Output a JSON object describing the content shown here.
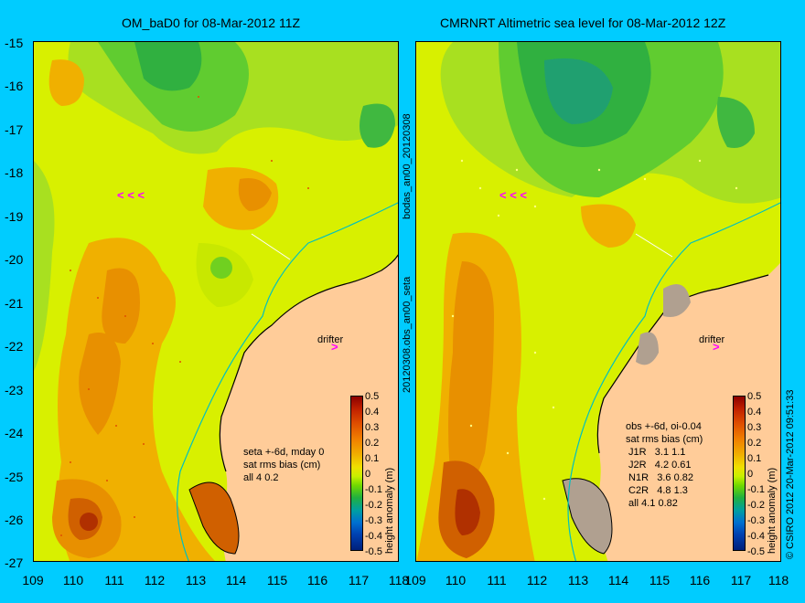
{
  "left_panel": {
    "title": "OM_baD0 for 08-Mar-2012 11Z",
    "annotation": "seta +-6d, mday 0\nsat rms bias (cm)\nall 4 0.2",
    "drifter_label": "drifter"
  },
  "right_panel": {
    "title": "CMRNRT Altimetric sea level  for 08-Mar-2012 12Z",
    "annotation": "obs +-6d, oi-0.04\nsat rms bias (cm)\n J1R   3.1 1.1\n J2R   4.2 0.61\n N1R   3.6 0.82\n C2R   4.8 1.3\n all 4.1 0.82",
    "drifter_label": "drifter"
  },
  "middle_labels": {
    "top": "bodas_an00_20120308",
    "bottom": "20120308.obs_an00_seta"
  },
  "credit": "© CSIRO 2012   20-Mar-2012 09:51:33",
  "colorbar": {
    "label": "height anomaly (m)",
    "ticks": [
      "0.5",
      "0.4",
      "0.3",
      "0.2",
      "0.1",
      "0",
      "-0.1",
      "-0.2",
      "-0.3",
      "-0.4",
      "-0.5"
    ]
  },
  "axes": {
    "y_ticks": [
      "-15",
      "-16",
      "-17",
      "-18",
      "-19",
      "-20",
      "-21",
      "-22",
      "-23",
      "-24",
      "-25",
      "-26",
      "-27"
    ],
    "x_ticks": [
      "109",
      "110",
      "111",
      "112",
      "113",
      "114",
      "115",
      "116",
      "117",
      "118"
    ]
  },
  "colors": {
    "background": "#00ccff",
    "land": "#ffcc99",
    "arrow": "#ff00ff"
  }
}
